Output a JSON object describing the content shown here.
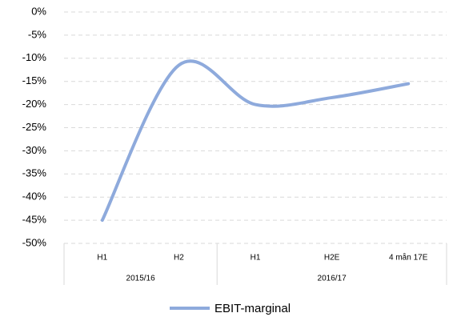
{
  "chart_data": {
    "type": "line",
    "categories": [
      "H1",
      "H2",
      "H1",
      "H2E",
      "4 mån 17E"
    ],
    "category_groups": [
      "2015/16",
      "2015/16",
      "2016/17",
      "2016/17",
      "2016/17"
    ],
    "series": [
      {
        "name": "EBIT-marginal",
        "color": "#8eaadc",
        "values": [
          -45,
          -11.5,
          -20,
          -18.5,
          -15.5
        ]
      }
    ],
    "ylim": [
      -50,
      0
    ],
    "yticks": [
      {
        "value": -50,
        "label": "-50%"
      },
      {
        "value": -45,
        "label": "-45%"
      },
      {
        "value": -40,
        "label": "-40%"
      },
      {
        "value": -35,
        "label": "-35%"
      },
      {
        "value": -30,
        "label": "-30%"
      },
      {
        "value": -25,
        "label": "-25%"
      },
      {
        "value": -20,
        "label": "-20%"
      },
      {
        "value": -15,
        "label": "-15%"
      },
      {
        "value": -10,
        "label": "-10%"
      },
      {
        "value": -5,
        "label": "-5%"
      },
      {
        "value": 0,
        "label": "0%"
      }
    ],
    "grid": true,
    "smooth": true,
    "legend": "bottom"
  }
}
